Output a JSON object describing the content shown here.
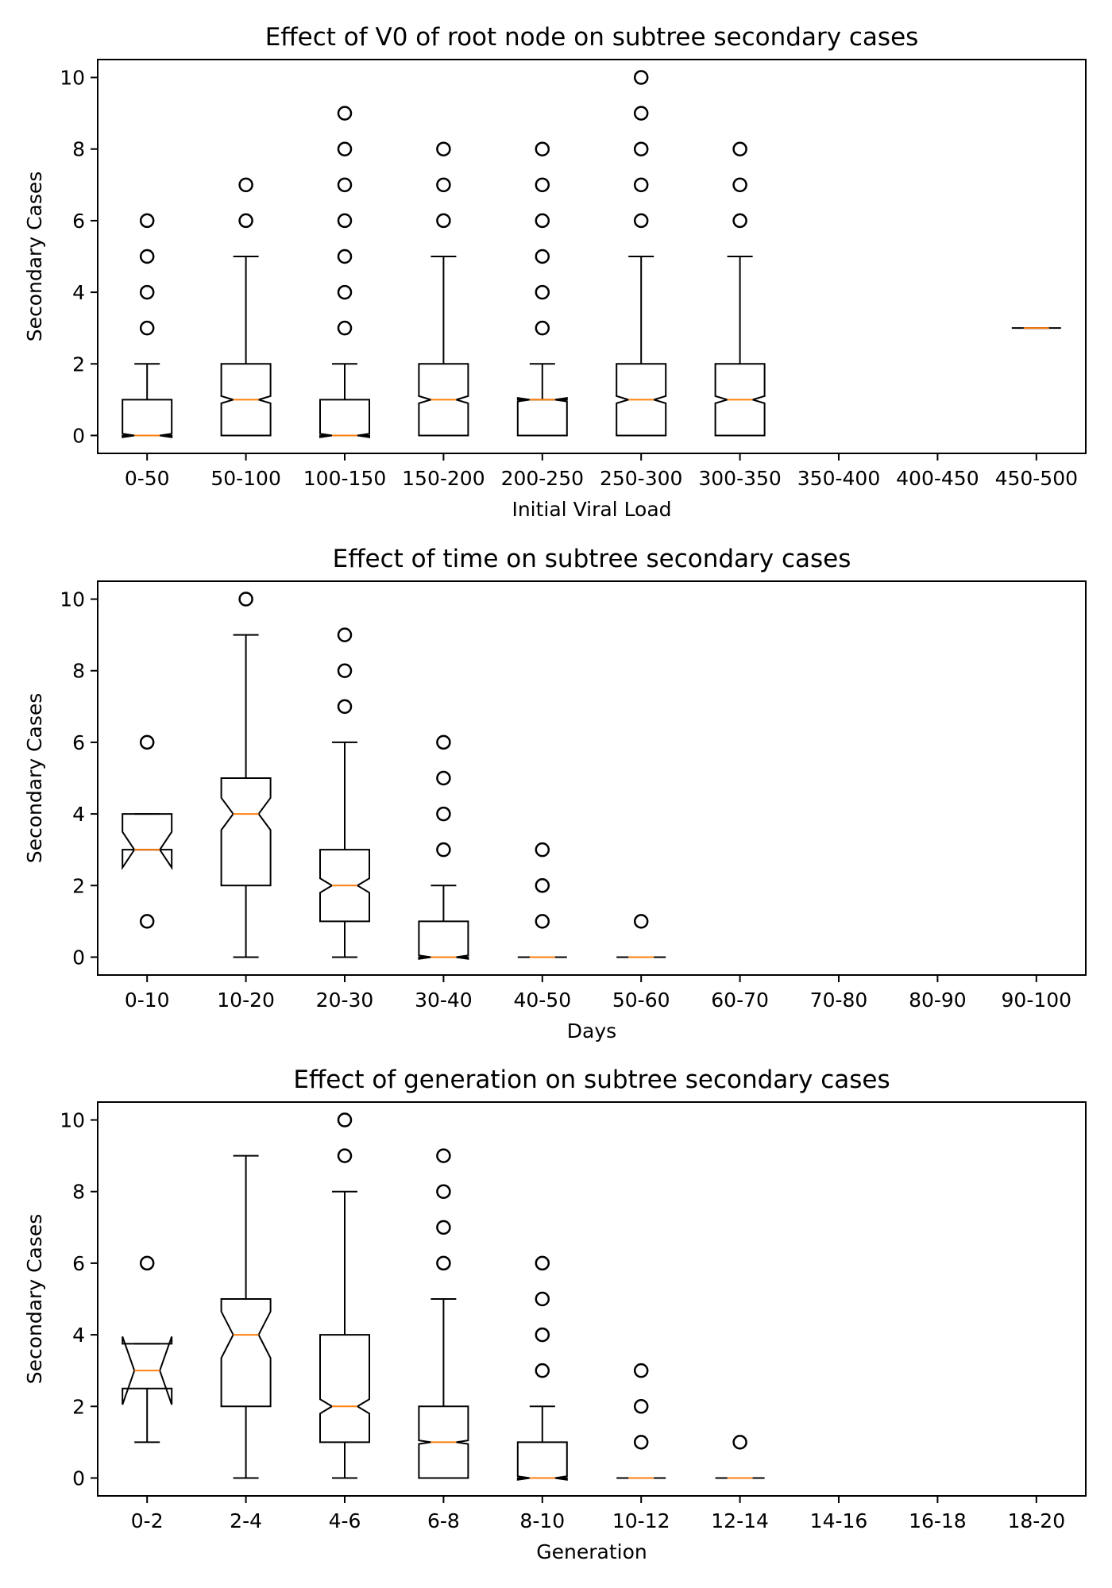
{
  "chart_data": [
    {
      "type": "boxplot",
      "title": "Effect of V0 of root node on subtree secondary cases",
      "xlabel": "Initial Viral Load",
      "ylabel": "Secondary Cases",
      "ylim": [
        -0.5,
        10.5
      ],
      "yticks": [
        0,
        2,
        4,
        6,
        8,
        10
      ],
      "grid": false,
      "notched": true,
      "colors": {
        "box": "#000000",
        "median": "#ff7f0e"
      },
      "categories": [
        "0-50",
        "50-100",
        "100-150",
        "150-200",
        "200-250",
        "250-300",
        "300-350",
        "350-400",
        "400-450",
        "450-500"
      ],
      "boxes": [
        {
          "q1": 0,
          "median": 0,
          "q3": 1,
          "whisker_low": 0,
          "whisker_high": 2,
          "notch_low": -0.05,
          "notch_high": 0.05,
          "outliers": [
            3,
            4,
            5,
            6
          ]
        },
        {
          "q1": 0,
          "median": 1,
          "q3": 2,
          "whisker_low": 0,
          "whisker_high": 5,
          "notch_low": 0.9,
          "notch_high": 1.1,
          "outliers": [
            6,
            7
          ]
        },
        {
          "q1": 0,
          "median": 0,
          "q3": 1,
          "whisker_low": 0,
          "whisker_high": 2,
          "notch_low": -0.05,
          "notch_high": 0.05,
          "outliers": [
            3,
            4,
            5,
            6,
            7,
            8,
            9
          ]
        },
        {
          "q1": 0,
          "median": 1,
          "q3": 2,
          "whisker_low": 0,
          "whisker_high": 5,
          "notch_low": 0.9,
          "notch_high": 1.1,
          "outliers": [
            6,
            7,
            8
          ]
        },
        {
          "q1": 0,
          "median": 1,
          "q3": 1,
          "whisker_low": 0,
          "whisker_high": 2,
          "notch_low": 0.95,
          "notch_high": 1.05,
          "outliers": [
            3,
            4,
            5,
            6,
            7,
            8
          ]
        },
        {
          "q1": 0,
          "median": 1,
          "q3": 2,
          "whisker_low": 0,
          "whisker_high": 5,
          "notch_low": 0.9,
          "notch_high": 1.1,
          "outliers": [
            6,
            7,
            8,
            9,
            10
          ]
        },
        {
          "q1": 0,
          "median": 1,
          "q3": 2,
          "whisker_low": 0,
          "whisker_high": 5,
          "notch_low": 0.9,
          "notch_high": 1.1,
          "outliers": [
            6,
            7,
            8
          ]
        },
        null,
        null,
        {
          "q1": 3,
          "median": 3,
          "q3": 3,
          "whisker_low": 3,
          "whisker_high": 3,
          "notch_low": 3,
          "notch_high": 3,
          "outliers": []
        }
      ]
    },
    {
      "type": "boxplot",
      "title": "Effect of time on subtree secondary cases",
      "xlabel": "Days",
      "ylabel": "Secondary Cases",
      "ylim": [
        -0.5,
        10.5
      ],
      "yticks": [
        0,
        2,
        4,
        6,
        8,
        10
      ],
      "grid": false,
      "notched": true,
      "colors": {
        "box": "#000000",
        "median": "#ff7f0e"
      },
      "categories": [
        "0-10",
        "10-20",
        "20-30",
        "30-40",
        "40-50",
        "50-60",
        "60-70",
        "70-80",
        "80-90",
        "90-100"
      ],
      "boxes": [
        {
          "q1": 3,
          "median": 3,
          "q3": 4,
          "whisker_low": 3,
          "whisker_high": 4,
          "notch_low": 2.5,
          "notch_high": 3.5,
          "outliers": [
            1,
            6
          ]
        },
        {
          "q1": 2,
          "median": 4,
          "q3": 5,
          "whisker_low": 0,
          "whisker_high": 9,
          "notch_low": 3.55,
          "notch_high": 4.45,
          "outliers": [
            10
          ]
        },
        {
          "q1": 1,
          "median": 2,
          "q3": 3,
          "whisker_low": 0,
          "whisker_high": 6,
          "notch_low": 1.8,
          "notch_high": 2.2,
          "outliers": [
            7,
            8,
            9
          ]
        },
        {
          "q1": 0,
          "median": 0,
          "q3": 1,
          "whisker_low": 0,
          "whisker_high": 2,
          "notch_low": -0.05,
          "notch_high": 0.05,
          "outliers": [
            3,
            4,
            5,
            6
          ]
        },
        {
          "q1": 0,
          "median": 0,
          "q3": 0,
          "whisker_low": 0,
          "whisker_high": 0,
          "notch_low": 0,
          "notch_high": 0,
          "outliers": [
            1,
            2,
            3
          ]
        },
        {
          "q1": 0,
          "median": 0,
          "q3": 0,
          "whisker_low": 0,
          "whisker_high": 0,
          "notch_low": 0,
          "notch_high": 0,
          "outliers": [
            1
          ]
        },
        null,
        null,
        null,
        null
      ]
    },
    {
      "type": "boxplot",
      "title": "Effect of generation on subtree secondary cases",
      "xlabel": "Generation",
      "ylabel": "Secondary Cases",
      "ylim": [
        -0.5,
        10.5
      ],
      "yticks": [
        0,
        2,
        4,
        6,
        8,
        10
      ],
      "grid": false,
      "notched": true,
      "colors": {
        "box": "#000000",
        "median": "#ff7f0e"
      },
      "categories": [
        "0-2",
        "2-4",
        "4-6",
        "6-8",
        "8-10",
        "10-12",
        "12-14",
        "14-16",
        "16-18",
        "18-20"
      ],
      "boxes": [
        {
          "q1": 2.5,
          "median": 3,
          "q3": 3.75,
          "whisker_low": 1,
          "whisker_high": 3.75,
          "notch_low": 2.05,
          "notch_high": 3.95,
          "outliers": [
            6
          ]
        },
        {
          "q1": 2,
          "median": 4,
          "q3": 5,
          "whisker_low": 0,
          "whisker_high": 9,
          "notch_low": 3.35,
          "notch_high": 4.65,
          "outliers": []
        },
        {
          "q1": 1,
          "median": 2,
          "q3": 4,
          "whisker_low": 0,
          "whisker_high": 8,
          "notch_low": 1.8,
          "notch_high": 2.2,
          "outliers": [
            9,
            10
          ]
        },
        {
          "q1": 0,
          "median": 1,
          "q3": 2,
          "whisker_low": 0,
          "whisker_high": 5,
          "notch_low": 0.95,
          "notch_high": 1.05,
          "outliers": [
            6,
            7,
            8,
            9
          ]
        },
        {
          "q1": 0,
          "median": 0,
          "q3": 1,
          "whisker_low": 0,
          "whisker_high": 2,
          "notch_low": -0.05,
          "notch_high": 0.05,
          "outliers": [
            3,
            4,
            5,
            6
          ]
        },
        {
          "q1": 0,
          "median": 0,
          "q3": 0,
          "whisker_low": 0,
          "whisker_high": 0,
          "notch_low": 0,
          "notch_high": 0,
          "outliers": [
            1,
            2,
            3
          ]
        },
        {
          "q1": 0,
          "median": 0,
          "q3": 0,
          "whisker_low": 0,
          "whisker_high": 0,
          "notch_low": 0,
          "notch_high": 0,
          "outliers": [
            1
          ]
        },
        null,
        null,
        null
      ]
    }
  ]
}
